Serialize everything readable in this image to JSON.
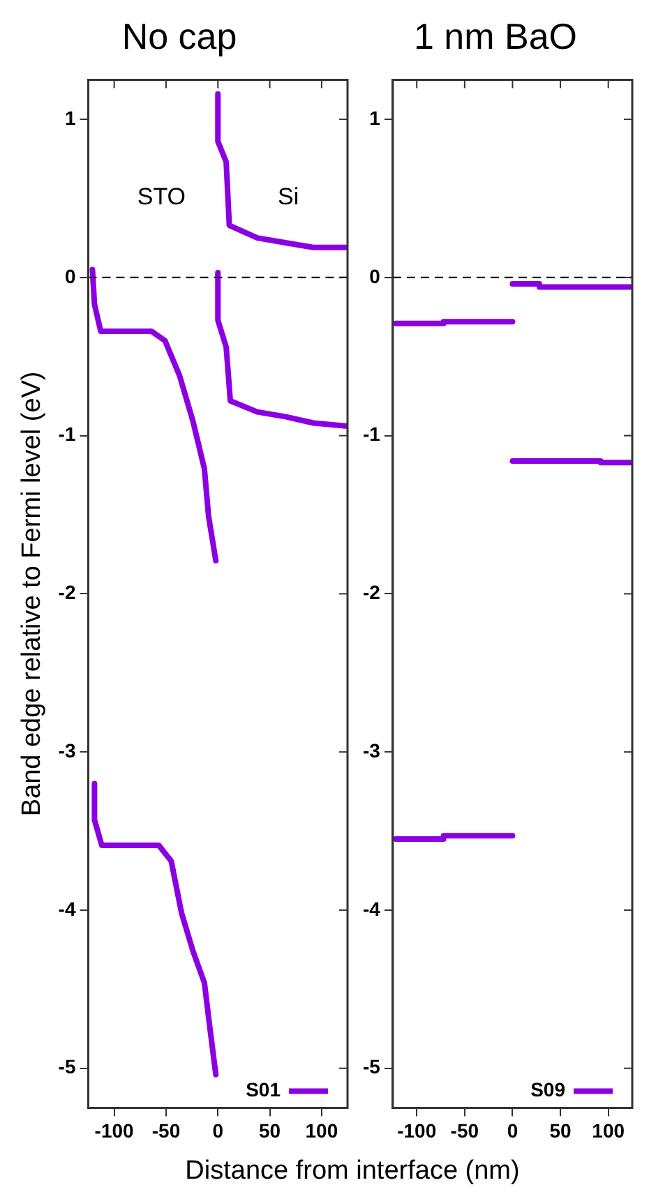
{
  "chart_data": [
    {
      "type": "line",
      "title": "No cap",
      "xlabel": "Distance from interface (nm)",
      "ylabel": "Band edge relative to Fermi level (eV)",
      "xlim": [
        -125,
        125
      ],
      "xticks": [
        -100,
        -50,
        0,
        50,
        100
      ],
      "ylim": [
        -5.25,
        1.25
      ],
      "yticks": [
        -5,
        -4,
        -3,
        -2,
        -1,
        0,
        1
      ],
      "legend": "bottom right",
      "marker": "none",
      "line_style": "solid",
      "ref_lines": [
        {
          "axis": "y",
          "value": 0,
          "color": "#000000",
          "line_style": "dashed"
        }
      ],
      "annotations": [
        "STO",
        "Si"
      ],
      "series": [
        {
          "name": "S01",
          "color": "#8b00e0",
          "x": [
            0,
            0,
            8,
            11,
            38,
            65,
            92,
            125,
            null,
            0,
            0,
            8,
            12,
            38,
            65,
            92,
            125,
            null,
            -121,
            -119,
            -113,
            -64,
            -51,
            -37,
            -24,
            -13,
            -9,
            -2,
            null,
            -119,
            -119,
            -112,
            -57,
            -45,
            -35,
            -24,
            -13,
            -8,
            -2
          ],
          "values": [
            1.16,
            0.86,
            0.73,
            0.33,
            0.25,
            0.22,
            0.19,
            0.19,
            null,
            0.03,
            -0.27,
            -0.44,
            -0.78,
            -0.85,
            -0.88,
            -0.92,
            -0.94,
            null,
            0.05,
            -0.17,
            -0.34,
            -0.34,
            -0.4,
            -0.62,
            -0.91,
            -1.21,
            -1.51,
            -1.79,
            null,
            -3.2,
            -3.43,
            -3.59,
            -3.59,
            -3.69,
            -4.02,
            -4.26,
            -4.46,
            -4.73,
            -5.04
          ]
        }
      ]
    },
    {
      "type": "line",
      "title": "1 nm BaO",
      "xlim": [
        -125,
        125
      ],
      "xticks": [
        -100,
        -50,
        0,
        50,
        100
      ],
      "ylim": [
        -5.25,
        1.25
      ],
      "yticks": [
        -5,
        -4,
        -3,
        -2,
        -1,
        0,
        1
      ],
      "legend": "bottom right",
      "marker": "none",
      "line_style": "solid",
      "ref_lines": [
        {
          "axis": "y",
          "value": 0,
          "color": "#000000",
          "line_style": "dashed"
        }
      ],
      "series": [
        {
          "name": "S09",
          "color": "#8b00e0",
          "x": [
            -122,
            -72,
            -72,
            0,
            null,
            0,
            28,
            28,
            125,
            null,
            0,
            92,
            92,
            125,
            null,
            -122,
            -72,
            -72,
            0
          ],
          "values": [
            -0.29,
            -0.29,
            -0.28,
            -0.28,
            null,
            -0.04,
            -0.04,
            -0.06,
            -0.06,
            null,
            -1.16,
            -1.16,
            -1.17,
            -1.17,
            null,
            -3.55,
            -3.55,
            -3.53,
            -3.53
          ]
        }
      ]
    }
  ]
}
